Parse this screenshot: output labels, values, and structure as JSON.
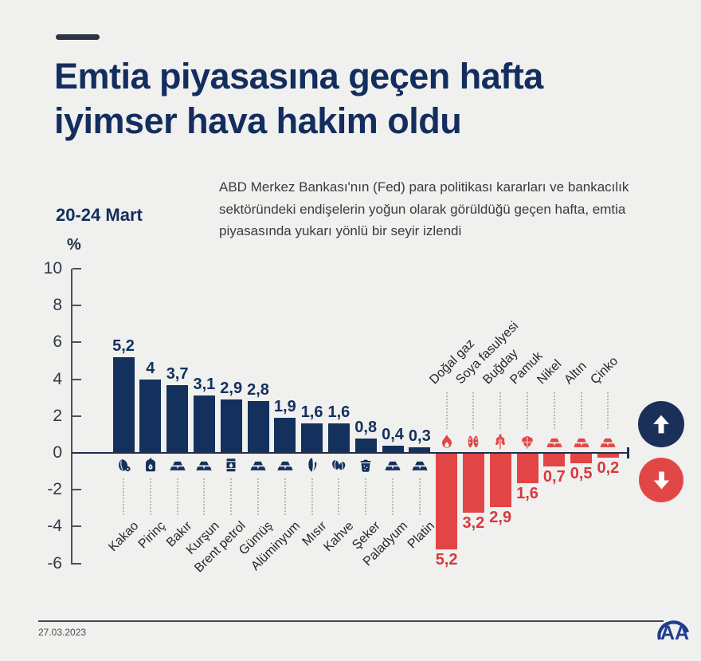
{
  "page": {
    "title_line1": "Emtia piyasasına geçen hafta",
    "title_line2": "iyimser hava hakim oldu",
    "subtitle": "ABD Merkez Bankası'nın (Fed) para politikası kararları ve bankacılık sektöründeki endişelerin yoğun olarak görüldüğü geçen hafta, emtia piyasasında yukarı yönlü bir seyir izlendi",
    "period_label": "20-24 Mart",
    "unit_label": "%",
    "footer_date": "27.03.2023",
    "logo_text": "AA"
  },
  "colors": {
    "background": "#f0f0ee",
    "positive": "#14305c",
    "negative": "#e24545",
    "positive_label": "#14305c",
    "negative_label": "#d8383e",
    "axis": "#49525f",
    "zero_line": "#20304c",
    "up_circle": "#1b3059",
    "down_circle": "#e24747",
    "logo_blue": "#1f3e8f"
  },
  "chart_data": {
    "type": "bar",
    "title": "Emtia piyasasına geçen hafta iyimser hava hakim oldu",
    "ylabel": "%",
    "ylim": [
      -6,
      10
    ],
    "yticks": [
      10,
      8,
      6,
      4,
      2,
      0,
      -2,
      -4,
      -6
    ],
    "grid": false,
    "legend": [
      {
        "name": "Yükselenler (up arrow)",
        "color": "#1b3059",
        "icon": "arrow-up-icon"
      },
      {
        "name": "Düşenler (down arrow)",
        "color": "#e24747",
        "icon": "arrow-down-icon"
      }
    ],
    "items": [
      {
        "label": "Kakao",
        "value": 5.2,
        "display": "5,2",
        "icon": "cocoa"
      },
      {
        "label": "Pirinç",
        "value": 4,
        "display": "4",
        "icon": "sack"
      },
      {
        "label": "Bakır",
        "value": 3.7,
        "display": "3,7",
        "icon": "ingot"
      },
      {
        "label": "Kurşun",
        "value": 3.1,
        "display": "3,1",
        "icon": "ingot"
      },
      {
        "label": "Brent petrol",
        "value": 2.9,
        "display": "2,9",
        "icon": "barrel"
      },
      {
        "label": "Gümüş",
        "value": 2.8,
        "display": "2,8",
        "icon": "ingot"
      },
      {
        "label": "Alüminyum",
        "value": 1.9,
        "display": "1,9",
        "icon": "ingot"
      },
      {
        "label": "Mısır",
        "value": 1.6,
        "display": "1,6",
        "icon": "corn"
      },
      {
        "label": "Kahve",
        "value": 1.6,
        "display": "1,6",
        "icon": "coffee"
      },
      {
        "label": "Şeker",
        "value": 0.8,
        "display": "0,8",
        "icon": "pot"
      },
      {
        "label": "Paladyum",
        "value": 0.4,
        "display": "0,4",
        "icon": "ingot"
      },
      {
        "label": "Platin",
        "value": 0.3,
        "display": "0,3",
        "icon": "ingot"
      },
      {
        "label": "Doğal gaz",
        "value": -5.2,
        "display": "5,2",
        "icon": "flame"
      },
      {
        "label": "Soya fasulyesi",
        "value": -3.2,
        "display": "3,2",
        "icon": "soy"
      },
      {
        "label": "Buğday",
        "value": -2.9,
        "display": "2,9",
        "icon": "wheat"
      },
      {
        "label": "Pamuk",
        "value": -1.6,
        "display": "1,6",
        "icon": "cotton"
      },
      {
        "label": "Nikel",
        "value": -0.7,
        "display": "0,7",
        "icon": "ingot"
      },
      {
        "label": "Altın",
        "value": -0.5,
        "display": "0,5",
        "icon": "ingot"
      },
      {
        "label": "Çinko",
        "value": -0.2,
        "display": "0,2",
        "icon": "ingot"
      }
    ]
  }
}
